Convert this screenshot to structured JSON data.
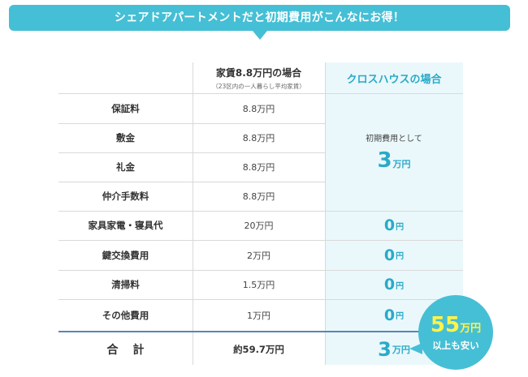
{
  "banner": {
    "text": "シェアドアパートメントだと初期費用がこんなにお得！"
  },
  "header": {
    "apartment_title": "家賃8.8万円の場合",
    "apartment_sub": "（23区内の一人暮らし平均家賃）",
    "crosshouse_title": "クロスハウスの場合"
  },
  "rows": [
    {
      "label": "保証料",
      "apartment": "8.8万円"
    },
    {
      "label": "敷金",
      "apartment": "8.8万円"
    },
    {
      "label": "礼金",
      "apartment": "8.8万円"
    },
    {
      "label": "仲介手数料",
      "apartment": "8.8万円"
    },
    {
      "label": "家具家電・寝具代",
      "apartment": "20万円",
      "crosshouse_value": "0",
      "crosshouse_unit": "円"
    },
    {
      "label": "鍵交換費用",
      "apartment": "2万円",
      "crosshouse_value": "0",
      "crosshouse_unit": "円"
    },
    {
      "label": "清掃料",
      "apartment": "1.5万円",
      "crosshouse_value": "0",
      "crosshouse_unit": "円"
    },
    {
      "label": "その他費用",
      "apartment": "1万円",
      "crosshouse_value": "0",
      "crosshouse_unit": "円"
    }
  ],
  "crosshouse_initial": {
    "label": "初期費用として",
    "value": "3",
    "unit": "万円"
  },
  "total": {
    "label": "合計",
    "apartment": "約59.7万円",
    "crosshouse_value": "3",
    "crosshouse_unit": "万円"
  },
  "badge": {
    "amount": "55",
    "unit": "万円",
    "line2": "以上も安い"
  },
  "colors": {
    "accent": "#45bfd5",
    "value_text": "#2aaac8",
    "highlight_yellow": "#fff34a",
    "column_bg": "#eaf8fb",
    "total_rule": "#5b84b6"
  }
}
